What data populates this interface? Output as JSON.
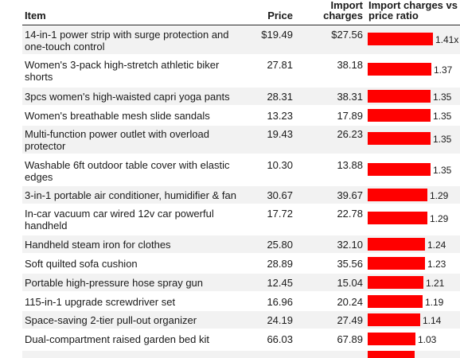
{
  "headers": {
    "item": "Item",
    "price": "Price",
    "import": "Import charges",
    "ratio": "Import charges vs price ratio"
  },
  "chart_data": {
    "type": "table",
    "columns": [
      "Item",
      "Price",
      "Import charges",
      "Import charges vs price ratio"
    ],
    "rows": [
      {
        "item": "14-in-1 power strip with surge protection and one-touch control",
        "price": "$19.49",
        "import": "$27.56",
        "ratio": 1.41,
        "ratio_label": "1.41x"
      },
      {
        "item": "Women's 3-pack high-stretch athletic biker shorts",
        "price": "27.81",
        "import": "38.18",
        "ratio": 1.37,
        "ratio_label": "1.37"
      },
      {
        "item": "3pcs women's high-waisted capri yoga pants",
        "price": "28.31",
        "import": "38.31",
        "ratio": 1.35,
        "ratio_label": "1.35"
      },
      {
        "item": "Women's breathable mesh slide sandals",
        "price": "13.23",
        "import": "17.89",
        "ratio": 1.35,
        "ratio_label": "1.35"
      },
      {
        "item": "Multi-function power outlet with overload protector",
        "price": "19.43",
        "import": "26.23",
        "ratio": 1.35,
        "ratio_label": "1.35"
      },
      {
        "item": "Washable 6ft outdoor table cover with elastic edges",
        "price": "10.30",
        "import": "13.88",
        "ratio": 1.35,
        "ratio_label": "1.35"
      },
      {
        "item": "3-in-1 portable air conditioner, humidifier & fan",
        "price": "30.67",
        "import": "39.67",
        "ratio": 1.29,
        "ratio_label": "1.29"
      },
      {
        "item": "In-car vacuum car wired 12v car powerful handheld",
        "price": "17.72",
        "import": "22.78",
        "ratio": 1.29,
        "ratio_label": "1.29"
      },
      {
        "item": "Handheld steam iron for clothes",
        "price": "25.80",
        "import": "32.10",
        "ratio": 1.24,
        "ratio_label": "1.24"
      },
      {
        "item": "Soft quilted sofa cushion",
        "price": "28.89",
        "import": "35.56",
        "ratio": 1.23,
        "ratio_label": "1.23"
      },
      {
        "item": "Portable high-pressure hose spray gun",
        "price": "12.45",
        "import": "15.04",
        "ratio": 1.21,
        "ratio_label": "1.21"
      },
      {
        "item": "115-in-1 upgrade screwdriver set",
        "price": "16.96",
        "import": "20.24",
        "ratio": 1.19,
        "ratio_label": "1.19"
      },
      {
        "item": "Space-saving 2-tier pull-out organizer",
        "price": "24.19",
        "import": "27.49",
        "ratio": 1.14,
        "ratio_label": "1.14"
      },
      {
        "item": "Dual-compartment raised garden bed kit",
        "price": "66.03",
        "import": "67.89",
        "ratio": 1.03,
        "ratio_label": "1.03"
      }
    ],
    "partial_next_row_ratio": 1.02,
    "bar_color": "#ff0000",
    "stripe_color": "#f2f2f2"
  }
}
